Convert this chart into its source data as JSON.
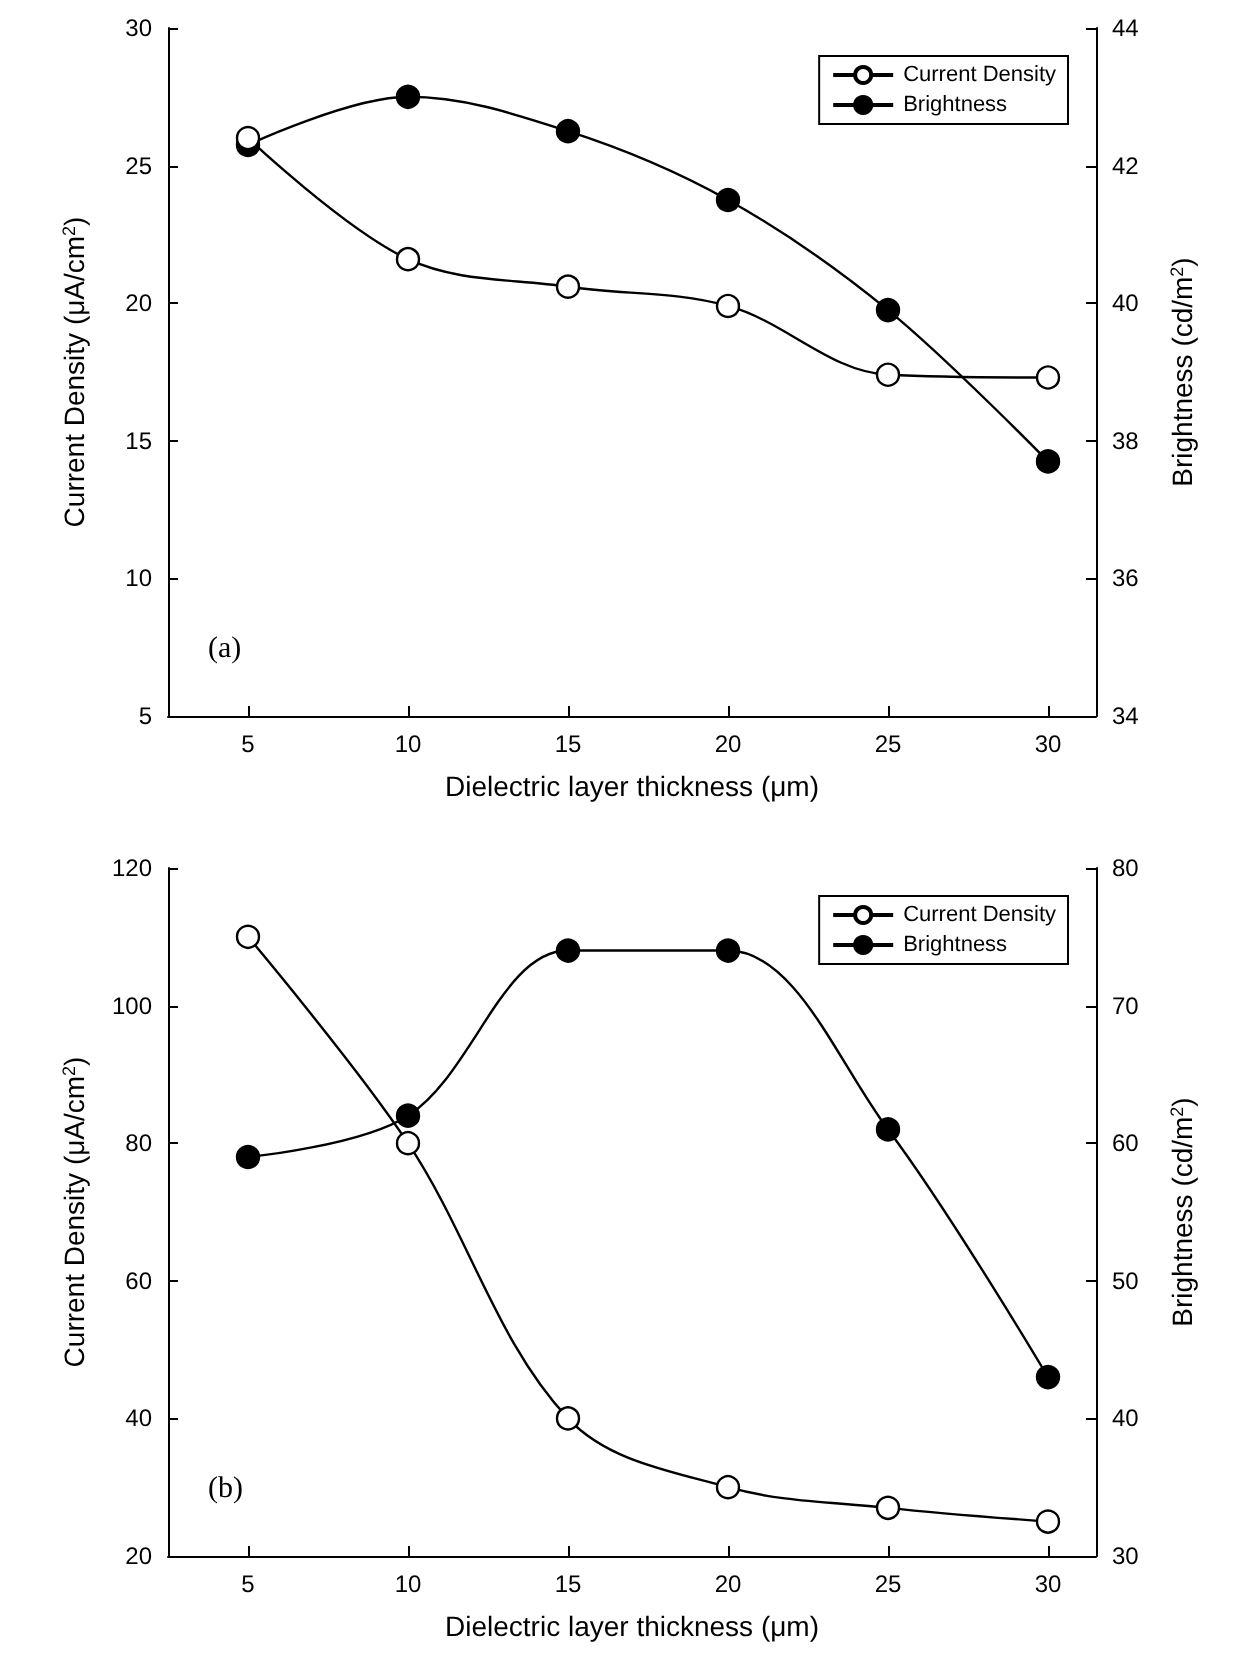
{
  "chart_data": [
    {
      "type": "line",
      "xlabel": "Dielectric layer thickness (μm)",
      "ylabel": "Current Density (μA/cm$^{2}$)",
      "y2label": "Brightness (cd/m$^{2}$)",
      "annotations": [
        "(a)"
      ],
      "x": [
        5,
        10,
        15,
        20,
        25,
        30
      ],
      "xlim": [
        2.5,
        31.5
      ],
      "xticks": [
        5,
        10,
        15,
        20,
        25,
        30
      ],
      "ylim": [
        5,
        30
      ],
      "yticks": [
        5,
        10,
        15,
        20,
        25,
        30
      ],
      "y2lim": [
        34,
        44
      ],
      "y2ticks": [
        34,
        36,
        38,
        40,
        42,
        44
      ],
      "legend": "top right",
      "grid": false,
      "marker": "circle",
      "line_style": "solid",
      "series": [
        {
          "name": "Current Density",
          "color": "#000000",
          "axis": "y",
          "values": [
            26,
            21.6,
            20.6,
            19.9,
            17.4,
            17.3
          ]
        },
        {
          "name": "Brightness",
          "color": "#000000",
          "axis": "y2",
          "values": [
            42.3,
            43.0,
            42.5,
            41.5,
            39.9,
            37.7
          ]
        }
      ]
    },
    {
      "type": "line",
      "xlabel": "Dielectric layer thickness (μm)",
      "ylabel": "Current Density (μA/cm$^{2}$)",
      "y2label": "Brightness (cd/m$^{2}$)",
      "annotations": [
        "(b)"
      ],
      "x": [
        5,
        10,
        15,
        20,
        25,
        30
      ],
      "xlim": [
        2.5,
        31.5
      ],
      "xticks": [
        5,
        10,
        15,
        20,
        25,
        30
      ],
      "ylim": [
        20,
        120
      ],
      "yticks": [
        20,
        40,
        60,
        80,
        100,
        120
      ],
      "y2lim": [
        30,
        80
      ],
      "y2ticks": [
        30,
        40,
        50,
        60,
        70,
        80
      ],
      "legend": "top right",
      "grid": false,
      "marker": "circle",
      "line_style": "solid",
      "series": [
        {
          "name": "Current Density",
          "color": "#000000",
          "axis": "y",
          "values": [
            110,
            80,
            40,
            30,
            27,
            25
          ]
        },
        {
          "name": "Brightness",
          "color": "#000000",
          "axis": "y2",
          "values": [
            59,
            62,
            74,
            74,
            61,
            43
          ]
        }
      ]
    }
  ]
}
